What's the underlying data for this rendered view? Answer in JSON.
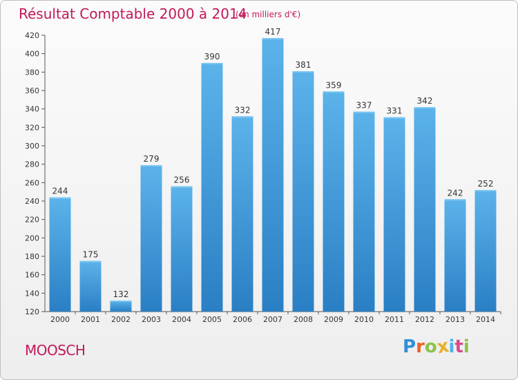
{
  "header": {
    "title": "Résultat Comptable 2000 à 2014",
    "unit": "(en milliers d'€)"
  },
  "footer": {
    "commune": "MOOSCH",
    "logo_letters": [
      "P",
      "r",
      "o",
      "x",
      "i",
      "t",
      "i"
    ],
    "logo_colors": [
      "#2f8fd6",
      "#e8622a",
      "#8bc34a",
      "#e8b02a",
      "#4fb3e8",
      "#d94a8c",
      "#8bc34a"
    ]
  },
  "colors": {
    "bar_top": "#5cb3ea",
    "bar_bottom": "#2a7fc4",
    "title": "#c2185b"
  },
  "chart_data": {
    "type": "bar",
    "title": "Résultat Comptable 2000 à 2014",
    "subtitle": "(en milliers d'€)",
    "categories": [
      "2000",
      "2001",
      "2002",
      "2003",
      "2004",
      "2005",
      "2006",
      "2007",
      "2008",
      "2009",
      "2010",
      "2011",
      "2012",
      "2013",
      "2014"
    ],
    "values": [
      244,
      175,
      132,
      279,
      256,
      390,
      332,
      417,
      381,
      359,
      337,
      331,
      342,
      242,
      252
    ],
    "ylim": [
      120,
      420
    ],
    "yticks": [
      120,
      140,
      160,
      180,
      200,
      220,
      240,
      260,
      280,
      300,
      320,
      340,
      360,
      380,
      400,
      420
    ],
    "grid": false,
    "xlabel": "",
    "ylabel": ""
  }
}
